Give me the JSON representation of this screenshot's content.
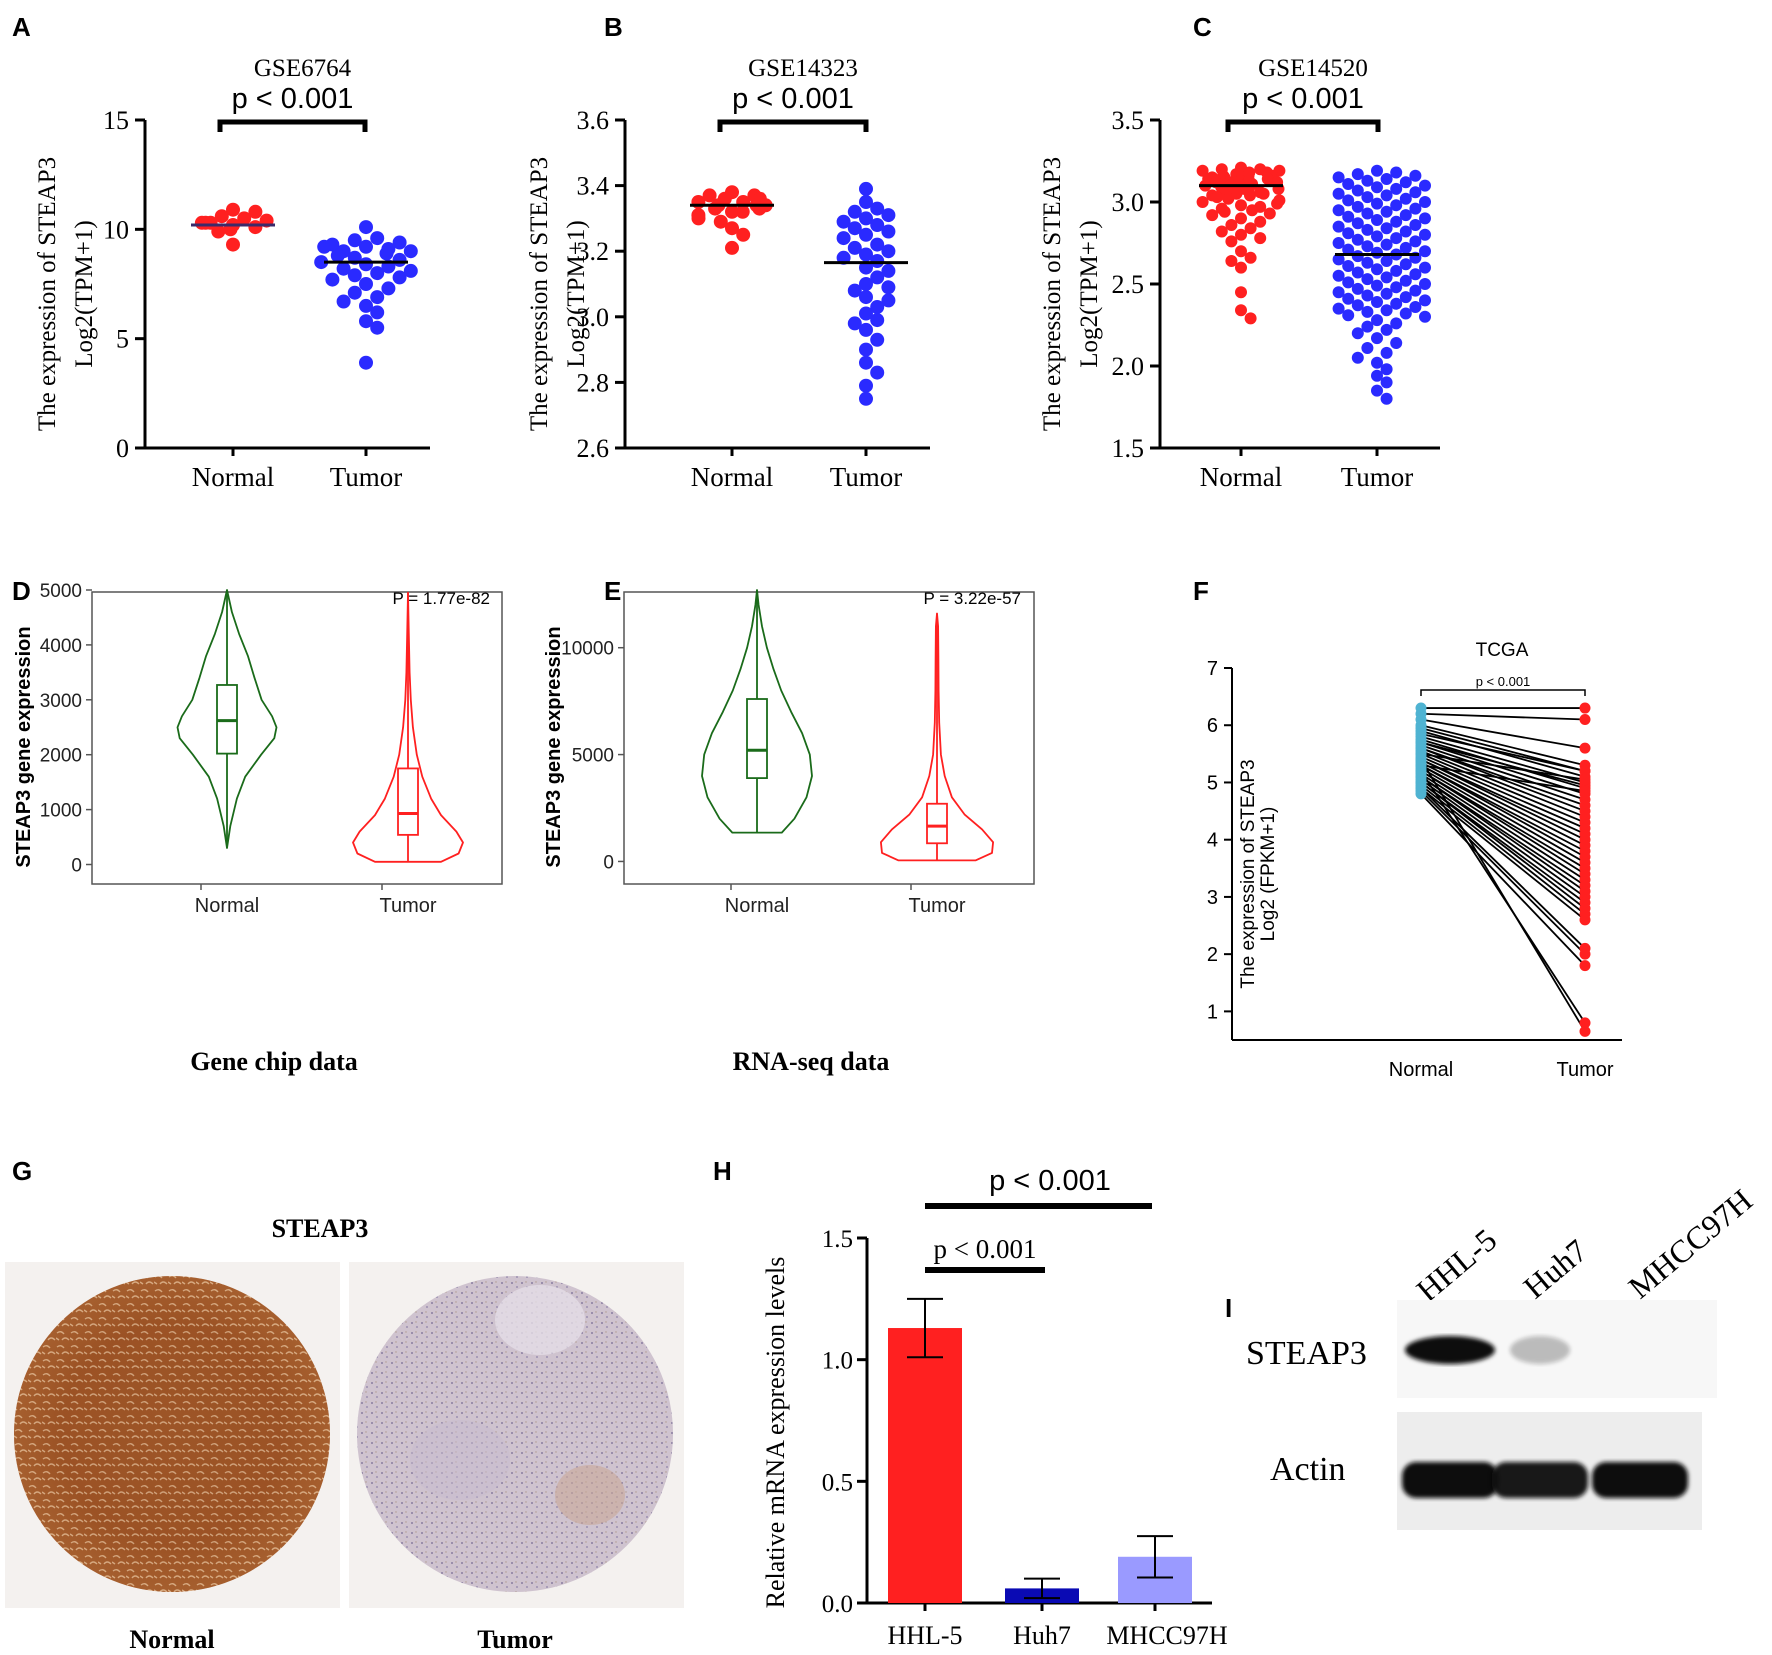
{
  "colors": {
    "red": "#ff2020",
    "blue": "#2a2aff",
    "green": "#1a6b1a",
    "cyan": "#4fb3d2",
    "black": "#000000",
    "darkblue": "#0a0ab4",
    "lightblue": "#9a9aff"
  },
  "panel_letters": [
    "A",
    "B",
    "C",
    "D",
    "E",
    "F",
    "G",
    "H",
    "I"
  ],
  "chart_data": [
    {
      "panel": "A",
      "type": "scatter",
      "title": "GSE6764",
      "pvalue": "p < 0.001",
      "ylabel_line1": "The expression of STEAP3",
      "ylabel_line2": "Log2(TPM+1)",
      "categories": [
        "Normal",
        "Tumor"
      ],
      "ylim": [
        0,
        15
      ],
      "yticks": [
        "0",
        "5",
        "10",
        "15"
      ],
      "ytick_values": [
        0,
        5,
        10,
        15
      ],
      "series": [
        {
          "name": "Normal",
          "color": "red",
          "mean": 10.2,
          "values": [
            10.8,
            10.6,
            10.4,
            10.3,
            10.3,
            10.2,
            10.1,
            10.0,
            9.9,
            10.3,
            10.9,
            10.5,
            9.3
          ]
        },
        {
          "name": "Tumor",
          "color": "blue",
          "mean": 8.5,
          "values": [
            10.1,
            9.6,
            9.5,
            9.4,
            9.3,
            9.2,
            9.2,
            9.1,
            9.0,
            9.0,
            8.9,
            8.8,
            8.7,
            8.6,
            8.5,
            8.4,
            8.3,
            8.2,
            8.1,
            8.0,
            7.9,
            7.8,
            7.7,
            7.5,
            7.3,
            7.1,
            6.9,
            6.7,
            6.5,
            6.2,
            5.8,
            5.5,
            3.9
          ]
        }
      ]
    },
    {
      "panel": "B",
      "type": "scatter",
      "title": "GSE14323",
      "pvalue": "p < 0.001",
      "ylabel_line1": "The expression of STEAP3",
      "ylabel_line2": "Log2(TPM+1)",
      "categories": [
        "Normal",
        "Tumor"
      ],
      "ylim": [
        2.6,
        3.6
      ],
      "yticks": [
        "2.6",
        "2.8",
        "3.0",
        "3.2",
        "3.4",
        "3.6"
      ],
      "ytick_values": [
        2.6,
        2.8,
        3.0,
        3.2,
        3.4,
        3.6
      ],
      "series": [
        {
          "name": "Normal",
          "color": "red",
          "mean": 3.34,
          "values": [
            3.38,
            3.37,
            3.37,
            3.36,
            3.36,
            3.35,
            3.35,
            3.34,
            3.34,
            3.34,
            3.33,
            3.33,
            3.32,
            3.32,
            3.31,
            3.3,
            3.29,
            3.27,
            3.25,
            3.21
          ]
        },
        {
          "name": "Tumor",
          "color": "blue",
          "mean": 3.165,
          "values": [
            3.39,
            3.35,
            3.33,
            3.32,
            3.31,
            3.3,
            3.29,
            3.28,
            3.27,
            3.26,
            3.25,
            3.24,
            3.22,
            3.21,
            3.2,
            3.19,
            3.18,
            3.17,
            3.15,
            3.14,
            3.12,
            3.1,
            3.09,
            3.08,
            3.06,
            3.05,
            3.03,
            3.01,
            2.99,
            2.98,
            2.96,
            2.93,
            2.9,
            2.86,
            2.83,
            2.79,
            2.75
          ]
        }
      ]
    },
    {
      "panel": "C",
      "type": "scatter",
      "title": "GSE14520",
      "pvalue": "p < 0.001",
      "ylabel_line1": "The expression of STEAP3",
      "ylabel_line2": "Log2(TPM+1)",
      "categories": [
        "Normal",
        "Tumor"
      ],
      "ylim": [
        1.5,
        3.5
      ],
      "yticks": [
        "1.5",
        "2.0",
        "2.5",
        "3.0",
        "3.5"
      ],
      "ytick_values": [
        1.5,
        2.0,
        2.5,
        3.0,
        3.5
      ],
      "series": [
        {
          "name": "Normal",
          "color": "red",
          "mean": 3.1,
          "values": [
            3.21,
            3.2,
            3.2,
            3.19,
            3.19,
            3.18,
            3.18,
            3.17,
            3.17,
            3.16,
            3.16,
            3.16,
            3.15,
            3.15,
            3.15,
            3.14,
            3.14,
            3.14,
            3.13,
            3.13,
            3.13,
            3.12,
            3.12,
            3.12,
            3.12,
            3.11,
            3.11,
            3.11,
            3.11,
            3.1,
            3.1,
            3.1,
            3.1,
            3.09,
            3.09,
            3.09,
            3.08,
            3.08,
            3.08,
            3.07,
            3.07,
            3.06,
            3.06,
            3.05,
            3.05,
            3.04,
            3.04,
            3.03,
            3.02,
            3.01,
            3.0,
            2.99,
            2.98,
            2.97,
            2.96,
            2.95,
            2.94,
            2.93,
            2.92,
            2.9,
            2.88,
            2.86,
            2.84,
            2.82,
            2.8,
            2.78,
            2.76,
            2.7,
            2.66,
            2.64,
            2.6,
            2.45,
            2.34,
            2.29
          ]
        },
        {
          "name": "Tumor",
          "color": "blue",
          "mean": 2.68,
          "values": [
            3.19,
            3.18,
            3.17,
            3.16,
            3.15,
            3.14,
            3.13,
            3.12,
            3.11,
            3.1,
            3.09,
            3.08,
            3.07,
            3.06,
            3.05,
            3.04,
            3.03,
            3.02,
            3.01,
            3.0,
            2.99,
            2.98,
            2.97,
            2.96,
            2.95,
            2.94,
            2.93,
            2.92,
            2.91,
            2.9,
            2.89,
            2.88,
            2.87,
            2.86,
            2.85,
            2.84,
            2.83,
            2.82,
            2.81,
            2.8,
            2.79,
            2.78,
            2.77,
            2.76,
            2.75,
            2.74,
            2.73,
            2.72,
            2.71,
            2.7,
            2.69,
            2.68,
            2.67,
            2.66,
            2.65,
            2.64,
            2.63,
            2.62,
            2.61,
            2.6,
            2.59,
            2.58,
            2.57,
            2.56,
            2.55,
            2.54,
            2.53,
            2.52,
            2.51,
            2.5,
            2.49,
            2.48,
            2.47,
            2.46,
            2.45,
            2.44,
            2.43,
            2.42,
            2.41,
            2.4,
            2.39,
            2.38,
            2.37,
            2.36,
            2.35,
            2.34,
            2.33,
            2.32,
            2.31,
            2.3,
            2.28,
            2.26,
            2.24,
            2.22,
            2.2,
            2.17,
            2.14,
            2.11,
            2.08,
            2.05,
            2.02,
            1.98,
            1.94,
            1.9,
            1.85,
            1.8
          ]
        }
      ]
    },
    {
      "panel": "D",
      "type": "violin",
      "ylabel": "STEAP3 gene expression",
      "caption": "Gene chip data",
      "pvalue": "P = 1.77e-82",
      "categories": [
        "Normal",
        "Tumor"
      ],
      "ylim": [
        -100,
        5000
      ],
      "yticks": [
        "0",
        "1000",
        "2000",
        "3000",
        "4000",
        "5000"
      ],
      "ytick_values": [
        0,
        1000,
        2000,
        3000,
        4000,
        5000
      ],
      "violins": [
        {
          "name": "Normal",
          "color": "green",
          "min": 300,
          "max": 5000,
          "q1": 2020,
          "median": 2620,
          "q3": 3270,
          "profile": [
            [
              300,
              0.0
            ],
            [
              700,
              0.06
            ],
            [
              1200,
              0.18
            ],
            [
              1600,
              0.33
            ],
            [
              2000,
              0.62
            ],
            [
              2300,
              0.86
            ],
            [
              2500,
              0.9
            ],
            [
              2700,
              0.82
            ],
            [
              3000,
              0.63
            ],
            [
              3400,
              0.5
            ],
            [
              3800,
              0.38
            ],
            [
              4200,
              0.22
            ],
            [
              4600,
              0.09
            ],
            [
              5000,
              0.0
            ]
          ]
        },
        {
          "name": "Tumor",
          "color": "red",
          "min": 50,
          "max": 4950,
          "q1": 540,
          "median": 930,
          "q3": 1750,
          "profile": [
            [
              50,
              0.6
            ],
            [
              200,
              0.92
            ],
            [
              400,
              1.0
            ],
            [
              600,
              0.88
            ],
            [
              900,
              0.6
            ],
            [
              1200,
              0.42
            ],
            [
              1600,
              0.26
            ],
            [
              2000,
              0.16
            ],
            [
              2500,
              0.09
            ],
            [
              3000,
              0.05
            ],
            [
              3500,
              0.03
            ],
            [
              4200,
              0.015
            ],
            [
              4950,
              0.0
            ]
          ]
        }
      ]
    },
    {
      "panel": "E",
      "type": "violin",
      "ylabel": "STEAP3 gene expression",
      "caption": "RNA-seq data",
      "pvalue": "P = 3.22e-57",
      "categories": [
        "Normal",
        "Tumor"
      ],
      "ylim": [
        -400,
        12700
      ],
      "yticks": [
        "0",
        "5000",
        "10000"
      ],
      "ytick_values": [
        0,
        5000,
        10000
      ],
      "violins": [
        {
          "name": "Normal",
          "color": "green",
          "min": 1350,
          "max": 12700,
          "q1": 3900,
          "median": 5200,
          "q3": 7600,
          "profile": [
            [
              1350,
              0.45
            ],
            [
              2000,
              0.68
            ],
            [
              3000,
              0.9
            ],
            [
              4000,
              1.0
            ],
            [
              5000,
              0.96
            ],
            [
              6000,
              0.82
            ],
            [
              7000,
              0.62
            ],
            [
              8000,
              0.44
            ],
            [
              9000,
              0.3
            ],
            [
              10000,
              0.18
            ],
            [
              11000,
              0.09
            ],
            [
              12000,
              0.03
            ],
            [
              12700,
              0.0
            ]
          ]
        },
        {
          "name": "Tumor",
          "color": "red",
          "min": 50,
          "max": 11600,
          "q1": 850,
          "median": 1650,
          "q3": 2700,
          "profile": [
            [
              50,
              0.7
            ],
            [
              400,
              1.0
            ],
            [
              900,
              1.02
            ],
            [
              1500,
              0.82
            ],
            [
              2200,
              0.5
            ],
            [
              3000,
              0.27
            ],
            [
              4000,
              0.14
            ],
            [
              5000,
              0.07
            ],
            [
              6500,
              0.04
            ],
            [
              8000,
              0.03
            ],
            [
              9500,
              0.025
            ],
            [
              11000,
              0.02
            ],
            [
              11600,
              0.0
            ]
          ]
        }
      ]
    },
    {
      "panel": "F",
      "type": "paired",
      "title": "TCGA",
      "pvalue": "p < 0.001",
      "ylabel_line1": "The expression of STEAP3",
      "ylabel_line2": "Log2 (FPKM+1)",
      "categories": [
        "Normal",
        "Tumor"
      ],
      "ylim": [
        0.5,
        7
      ],
      "yticks": [
        "1",
        "2",
        "3",
        "4",
        "5",
        "6",
        "7"
      ],
      "ytick_values": [
        1,
        2,
        3,
        4,
        5,
        6,
        7
      ],
      "pairs": [
        [
          6.3,
          6.3
        ],
        [
          6.2,
          6.1
        ],
        [
          6.1,
          5.6
        ],
        [
          6.0,
          5.3
        ],
        [
          5.95,
          5.2
        ],
        [
          5.9,
          5.1
        ],
        [
          5.85,
          5.2
        ],
        [
          5.8,
          5.0
        ],
        [
          5.75,
          4.9
        ],
        [
          5.7,
          4.8
        ],
        [
          5.65,
          4.7
        ],
        [
          5.6,
          4.6
        ],
        [
          5.6,
          4.5
        ],
        [
          5.55,
          4.4
        ],
        [
          5.5,
          4.3
        ],
        [
          5.45,
          4.2
        ],
        [
          5.4,
          4.1
        ],
        [
          5.4,
          4.0
        ],
        [
          5.35,
          3.9
        ],
        [
          5.3,
          3.8
        ],
        [
          5.3,
          3.7
        ],
        [
          5.25,
          3.6
        ],
        [
          5.2,
          3.5
        ],
        [
          5.2,
          3.4
        ],
        [
          5.15,
          3.3
        ],
        [
          5.1,
          3.2
        ],
        [
          5.1,
          3.1
        ],
        [
          5.05,
          3.0
        ],
        [
          5.0,
          2.9
        ],
        [
          5.0,
          2.8
        ],
        [
          4.95,
          2.7
        ],
        [
          4.9,
          2.6
        ],
        [
          4.9,
          2.1
        ],
        [
          4.85,
          2.0
        ],
        [
          4.8,
          1.8
        ],
        [
          5.2,
          0.8
        ],
        [
          5.4,
          0.65
        ],
        [
          5.7,
          4.95
        ],
        [
          5.5,
          5.05
        ],
        [
          5.3,
          4.85
        ]
      ]
    },
    {
      "panel": "H",
      "type": "bar",
      "ylabel": "Relative mRNA expression levels",
      "categories": [
        "HHL-5",
        "Huh7",
        "MHCC97H"
      ],
      "values": [
        1.13,
        0.06,
        0.19
      ],
      "errors": [
        0.12,
        0.04,
        0.085
      ],
      "bar_colors": [
        "red",
        "darkblue",
        "lightblue"
      ],
      "ylim": [
        0,
        1.5
      ],
      "yticks": [
        "0.0",
        "0.5",
        "1.0",
        "1.5"
      ],
      "ytick_values": [
        0,
        0.5,
        1.0,
        1.5
      ],
      "comparisons": [
        {
          "label": "p < 0.001",
          "from": 0,
          "to": 1
        },
        {
          "label": "p < 0.001",
          "from": 0,
          "to": 2
        }
      ]
    }
  ],
  "panel_g": {
    "title": "STEAP3",
    "images": [
      {
        "label": "Normal"
      },
      {
        "label": "Tumor"
      }
    ]
  },
  "panel_i": {
    "lanes": [
      "HHL-5",
      "Huh7",
      "MHCC97H"
    ],
    "rows": [
      "STEAP3",
      "Actin"
    ],
    "band_intensity": {
      "STEAP3": [
        1.0,
        0.25,
        0.0
      ],
      "Actin": [
        1.0,
        0.95,
        1.0
      ]
    }
  }
}
